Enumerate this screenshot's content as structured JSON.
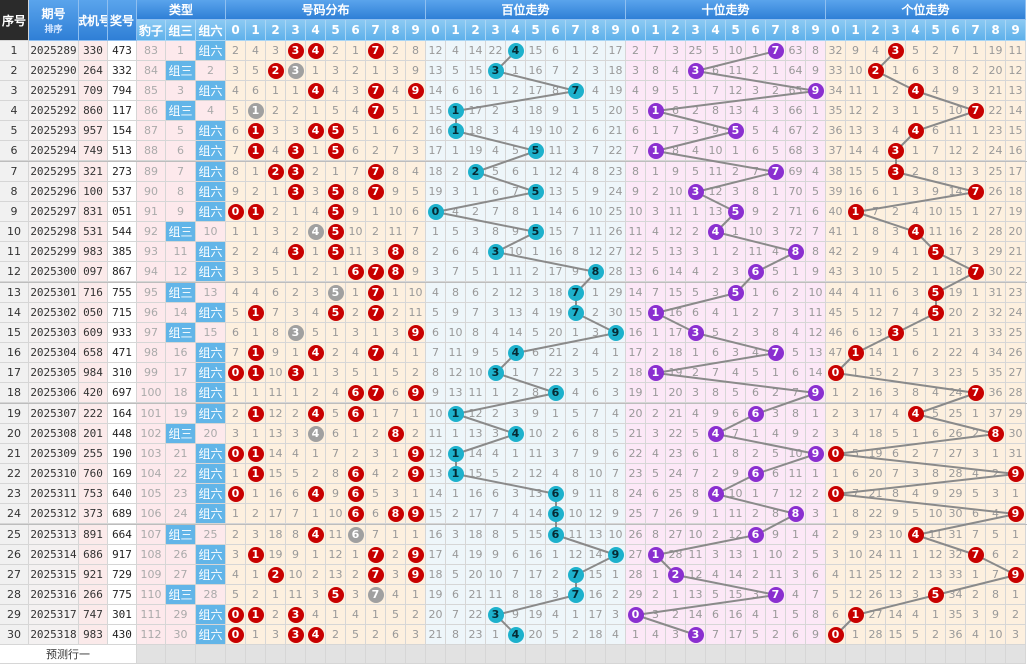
{
  "header": {
    "seq": "序号",
    "issue": "期号",
    "sort": "排序",
    "test": "试机号",
    "win": "奖号",
    "type": "类型",
    "dist": "号码分布",
    "hundreds": "百位走势",
    "tens": "十位走势",
    "units": "个位走势",
    "type_cols": [
      "豹子",
      "组三",
      "组六"
    ],
    "digits": [
      "0",
      "1",
      "2",
      "3",
      "4",
      "5",
      "6",
      "7",
      "8",
      "9"
    ]
  },
  "labels": {
    "zu3": "组三",
    "zu6": "组六",
    "predict": "预测行一"
  },
  "colors": {
    "dist_ball": "#c80000",
    "repeat_ball": "#a0a0a0",
    "hundreds_ball": "#1db1cc",
    "tens_ball": "#8a2fd0",
    "units_ball": "#c80000",
    "header": "#3d8fe0"
  },
  "rows": [
    {
      "seq": "1",
      "issue": "2025289",
      "test": "330",
      "win": "473"
    },
    {
      "seq": "2",
      "issue": "2025290",
      "test": "264",
      "win": "332"
    },
    {
      "seq": "3",
      "issue": "2025291",
      "test": "709",
      "win": "794"
    },
    {
      "seq": "4",
      "issue": "2025292",
      "test": "860",
      "win": "117"
    },
    {
      "seq": "5",
      "issue": "2025293",
      "test": "957",
      "win": "154"
    },
    {
      "seq": "6",
      "issue": "2025294",
      "test": "749",
      "win": "513"
    },
    {
      "seq": "7",
      "issue": "2025295",
      "test": "321",
      "win": "273"
    },
    {
      "seq": "8",
      "issue": "2025296",
      "test": "100",
      "win": "537"
    },
    {
      "seq": "9",
      "issue": "2025297",
      "test": "831",
      "win": "051"
    },
    {
      "seq": "10",
      "issue": "2025298",
      "test": "531",
      "win": "544"
    },
    {
      "seq": "11",
      "issue": "2025299",
      "test": "983",
      "win": "385"
    },
    {
      "seq": "12",
      "issue": "2025300",
      "test": "097",
      "win": "867"
    },
    {
      "seq": "13",
      "issue": "2025301",
      "test": "716",
      "win": "755"
    },
    {
      "seq": "14",
      "issue": "2025302",
      "test": "050",
      "win": "715"
    },
    {
      "seq": "15",
      "issue": "2025303",
      "test": "609",
      "win": "933"
    },
    {
      "seq": "16",
      "issue": "2025304",
      "test": "658",
      "win": "471"
    },
    {
      "seq": "17",
      "issue": "2025305",
      "test": "984",
      "win": "310"
    },
    {
      "seq": "18",
      "issue": "2025306",
      "test": "420",
      "win": "697"
    },
    {
      "seq": "19",
      "issue": "2025307",
      "test": "222",
      "win": "164"
    },
    {
      "seq": "20",
      "issue": "2025308",
      "test": "201",
      "win": "448"
    },
    {
      "seq": "21",
      "issue": "2025309",
      "test": "255",
      "win": "190"
    },
    {
      "seq": "22",
      "issue": "2025310",
      "test": "760",
      "win": "169"
    },
    {
      "seq": "23",
      "issue": "2025311",
      "test": "753",
      "win": "640"
    },
    {
      "seq": "24",
      "issue": "2025312",
      "test": "373",
      "win": "689"
    },
    {
      "seq": "25",
      "issue": "2025313",
      "test": "891",
      "win": "664"
    },
    {
      "seq": "26",
      "issue": "2025314",
      "test": "686",
      "win": "917"
    },
    {
      "seq": "27",
      "issue": "2025315",
      "test": "921",
      "win": "729"
    },
    {
      "seq": "28",
      "issue": "2025316",
      "test": "266",
      "win": "775"
    },
    {
      "seq": "29",
      "issue": "2025317",
      "test": "747",
      "win": "301"
    },
    {
      "seq": "30",
      "issue": "2025318",
      "test": "983",
      "win": "430"
    }
  ],
  "first_row_omission": {
    "type": [
      83,
      1,
      1
    ],
    "dist": [
      2,
      4,
      3,
      0,
      0,
      2,
      1,
      0,
      2,
      8
    ],
    "hundreds": [
      12,
      4,
      14,
      22,
      0,
      15,
      6,
      1,
      2,
      17
    ],
    "tens": [
      2,
      7,
      3,
      25,
      5,
      10,
      1,
      0,
      63,
      8
    ],
    "units": [
      32,
      9,
      4,
      0,
      5,
      2,
      7,
      1,
      19,
      11
    ]
  }
}
